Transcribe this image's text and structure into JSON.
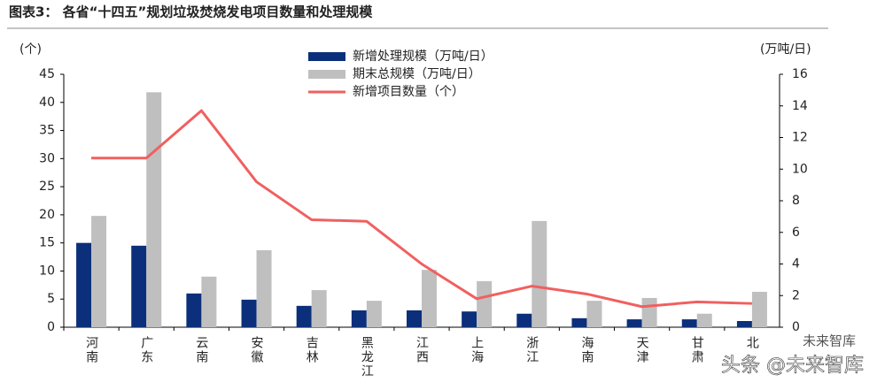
{
  "chart_data": {
    "type": "bar",
    "title": "图表3：  各省“十四五”规划垃圾焚烧发电项目数量和处理规模",
    "y_label": "(个)",
    "y2_label": "(万吨/日)",
    "categories": [
      "河南",
      "广东",
      "云南",
      "安徽",
      "吉林",
      "黑龙江",
      "江西",
      "上海",
      "浙江",
      "海南",
      "天津",
      "甘肃",
      "北"
    ],
    "series": [
      {
        "name": "新增处理规模（万吨/日）",
        "type": "bar",
        "color": "#0b2f7a",
        "values": [
          15,
          14.5,
          6.0,
          4.9,
          3.8,
          3.0,
          3.0,
          2.8,
          2.4,
          1.6,
          1.4,
          1.4,
          1.1
        ]
      },
      {
        "name": "期末总规模（万吨/日）",
        "type": "bar",
        "color": "#bfbfbf",
        "values": [
          19.8,
          41.8,
          9.0,
          13.7,
          6.6,
          4.7,
          10.2,
          8.2,
          18.9,
          4.7,
          5.2,
          2.4,
          6.3
        ]
      },
      {
        "name": "新增项目数量（个）",
        "type": "line",
        "axis": "y2",
        "color": "#f0605f",
        "values": [
          10.7,
          10.7,
          13.7,
          9.2,
          6.8,
          6.7,
          4.0,
          1.8,
          2.6,
          2.1,
          1.3,
          1.6,
          1.5
        ]
      }
    ],
    "ylim": [
      0,
      45
    ],
    "yticks": [
      0,
      5,
      10,
      15,
      20,
      25,
      30,
      35,
      40,
      45
    ],
    "y2lim": [
      0,
      16
    ],
    "y2ticks": [
      0,
      2,
      4,
      6,
      8,
      10,
      12,
      14,
      16
    ],
    "watermark": "头条 @未来智库",
    "logo_text": "未来智库"
  }
}
